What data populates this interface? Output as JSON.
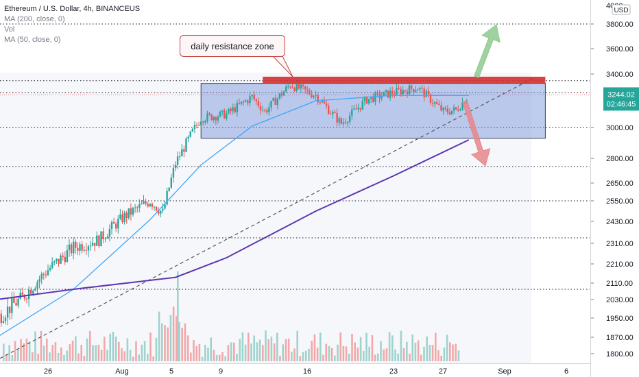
{
  "header": {
    "symbol_title": "Ethereum / U.S. Dollar, 4h, BINANCEUS",
    "indicators": [
      "MA (200, close, 0)",
      "Vol",
      "MA (50, close, 0)"
    ]
  },
  "price_axis": {
    "currency": "USD"
  },
  "current_price": {
    "value": "3244.02",
    "countdown": "02:46:45",
    "color": "#26a69a"
  },
  "annotation": {
    "text": "daily resistance zone"
  },
  "chart_data": {
    "type": "candlestick",
    "title": "Ethereum / U.S. Dollar, 4h, BINANCEUS",
    "x_ticks": [
      "26",
      "Aug",
      "5",
      "9",
      "16",
      "23",
      "27",
      "Sep",
      "6"
    ],
    "y_ticks": [
      3800,
      3600,
      3400,
      3000,
      2800,
      2650,
      2550,
      2430,
      2310,
      2210,
      2110,
      2030,
      1950,
      1870,
      1800
    ],
    "y_top_label": "4000",
    "horizontal_levels": [
      3800,
      3350,
      3260,
      3000,
      2750,
      2550,
      2340,
      2080
    ],
    "resistance_zone": {
      "from": 3330,
      "to": 3380,
      "color": "#d32f2f"
    },
    "range_box": {
      "from": 2930,
      "to": 3330,
      "color": "#6f8fd6"
    },
    "arrows": [
      {
        "direction": "up",
        "color": "#8fc98f"
      },
      {
        "direction": "down",
        "color": "#e8868a"
      }
    ],
    "price_series": [
      [
        "Jul 22",
        1950
      ],
      [
        "Jul 24",
        2040
      ],
      [
        "Jul 26",
        2180
      ],
      [
        "Jul 28",
        2290
      ],
      [
        "Jul 30",
        2330
      ],
      [
        "Aug 1",
        2460
      ],
      [
        "Aug 3",
        2550
      ],
      [
        "Aug 4",
        2480
      ],
      [
        "Aug 5",
        2770
      ],
      [
        "Aug 7",
        3070
      ],
      [
        "Aug 9",
        3100
      ],
      [
        "Aug 11",
        3230
      ],
      [
        "Aug 12",
        3120
      ],
      [
        "Aug 14",
        3320
      ],
      [
        "Aug 16",
        3240
      ],
      [
        "Aug 18",
        3030
      ],
      [
        "Aug 20",
        3210
      ],
      [
        "Aug 22",
        3260
      ],
      [
        "Aug 24",
        3300
      ],
      [
        "Aug 26",
        3120
      ],
      [
        "Aug 27",
        3130
      ],
      [
        "Aug 28",
        3244
      ]
    ],
    "ma50": [
      [
        "Jul 22",
        1870
      ],
      [
        "Jul 28",
        2080
      ],
      [
        "Aug 3",
        2440
      ],
      [
        "Aug 7",
        2760
      ],
      [
        "Aug 11",
        3010
      ],
      [
        "Aug 16",
        3200
      ],
      [
        "Aug 22",
        3240
      ],
      [
        "Aug 28",
        3240
      ]
    ],
    "ma200": [
      [
        "Jul 22",
        2030
      ],
      [
        "Jul 28",
        2080
      ],
      [
        "Aug 5",
        2140
      ],
      [
        "Aug 9",
        2240
      ],
      [
        "Aug 16",
        2490
      ],
      [
        "Aug 22",
        2690
      ],
      [
        "Aug 28",
        2920
      ]
    ],
    "volume_note": "Volume histogram at bottom",
    "grid": true
  }
}
